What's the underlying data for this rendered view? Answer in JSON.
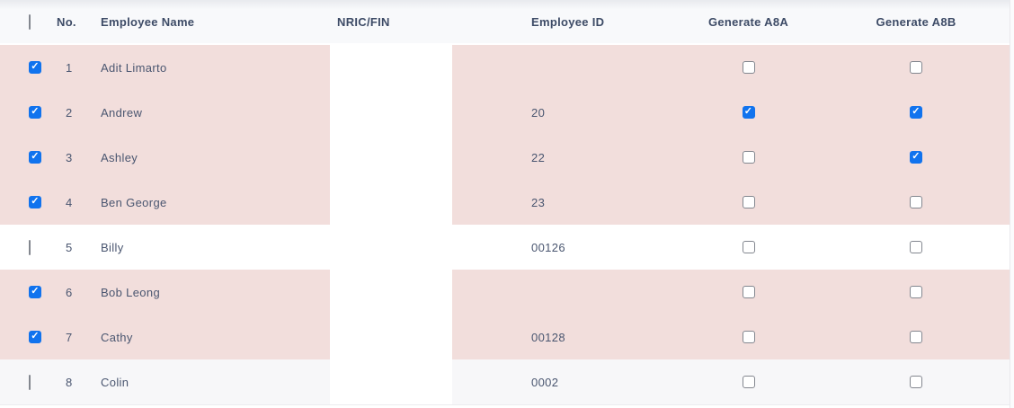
{
  "colors": {
    "selected_row_bg": "#f2dedc",
    "alt_row_bg": "#f7f7f9",
    "header_text": "#3d4b66",
    "body_text": "#4a5670",
    "checkbox_checked": "#1173ee",
    "checkbox_border": "#83878f"
  },
  "table": {
    "select_all_checked": false,
    "columns": [
      {
        "key": "no",
        "label": "No."
      },
      {
        "key": "name",
        "label": "Employee Name"
      },
      {
        "key": "nric",
        "label": "NRIC/FIN"
      },
      {
        "key": "emp_id",
        "label": "Employee ID"
      },
      {
        "key": "a8a",
        "label": "Generate A8A"
      },
      {
        "key": "a8b",
        "label": "Generate A8B"
      }
    ],
    "rows": [
      {
        "selected": true,
        "no": "1",
        "name": "Adit Limarto",
        "nric": "",
        "emp_id": "",
        "a8a": false,
        "a8b": false
      },
      {
        "selected": true,
        "no": "2",
        "name": "Andrew",
        "nric": "",
        "emp_id": "20",
        "a8a": true,
        "a8b": true
      },
      {
        "selected": true,
        "no": "3",
        "name": "Ashley",
        "nric": "",
        "emp_id": "22",
        "a8a": false,
        "a8b": true
      },
      {
        "selected": true,
        "no": "4",
        "name": "Ben George",
        "nric": "",
        "emp_id": "23",
        "a8a": false,
        "a8b": false
      },
      {
        "selected": false,
        "no": "5",
        "name": "Billy",
        "nric": "",
        "emp_id": "00126",
        "a8a": false,
        "a8b": false
      },
      {
        "selected": true,
        "no": "6",
        "name": "Bob Leong",
        "nric": "",
        "emp_id": "",
        "a8a": false,
        "a8b": false
      },
      {
        "selected": true,
        "no": "7",
        "name": "Cathy",
        "nric": "",
        "emp_id": "00128",
        "a8a": false,
        "a8b": false
      },
      {
        "selected": false,
        "no": "8",
        "name": "Colin",
        "nric": "",
        "emp_id": "0002",
        "a8a": false,
        "a8b": false
      }
    ]
  }
}
